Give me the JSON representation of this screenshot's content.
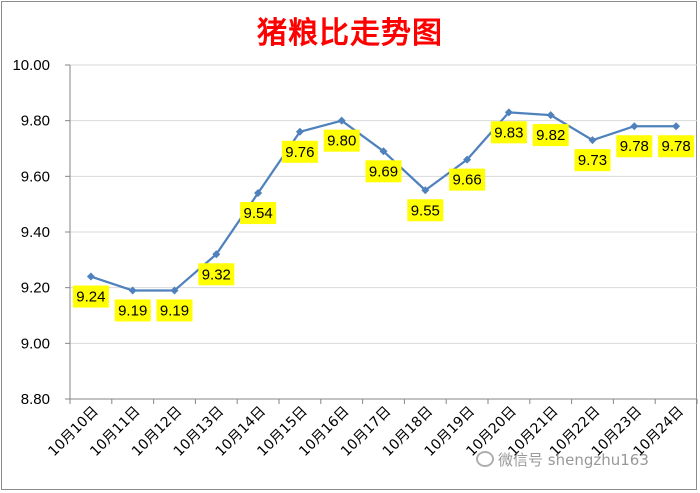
{
  "chart_data": {
    "type": "line",
    "title": "猪粮比走势图",
    "categories": [
      "10月10日",
      "10月11日",
      "10月12日",
      "10月13日",
      "10月14日",
      "10月15日",
      "10月16日",
      "10月17日",
      "10月18日",
      "10月19日",
      "10月20日",
      "10月21日",
      "10月22日",
      "10月23日",
      "10月24日"
    ],
    "series": [
      {
        "values": [
          9.24,
          9.19,
          9.19,
          9.32,
          9.54,
          9.76,
          9.8,
          9.69,
          9.55,
          9.66,
          9.83,
          9.82,
          9.73,
          9.78,
          9.78
        ]
      }
    ],
    "data_labels": [
      "9.24",
      "9.19",
      "9.19",
      "9.32",
      "9.54",
      "9.76",
      "9.80",
      "9.69",
      "9.55",
      "9.66",
      "9.83",
      "9.82",
      "9.73",
      "9.78",
      "9.78"
    ],
    "ylim": [
      8.8,
      10.0
    ],
    "yticks": [
      "8.80",
      "9.00",
      "9.20",
      "9.40",
      "9.60",
      "9.80",
      "10.00"
    ],
    "xlabel": "",
    "ylabel": "",
    "grid": true,
    "legend": "none",
    "colors": {
      "line": "#4f81bd",
      "title": "#ff0000",
      "label_bg": "#ffff00",
      "grid": "#d9d9d9"
    }
  },
  "watermark": {
    "text": "微信号 shengzhu163"
  }
}
